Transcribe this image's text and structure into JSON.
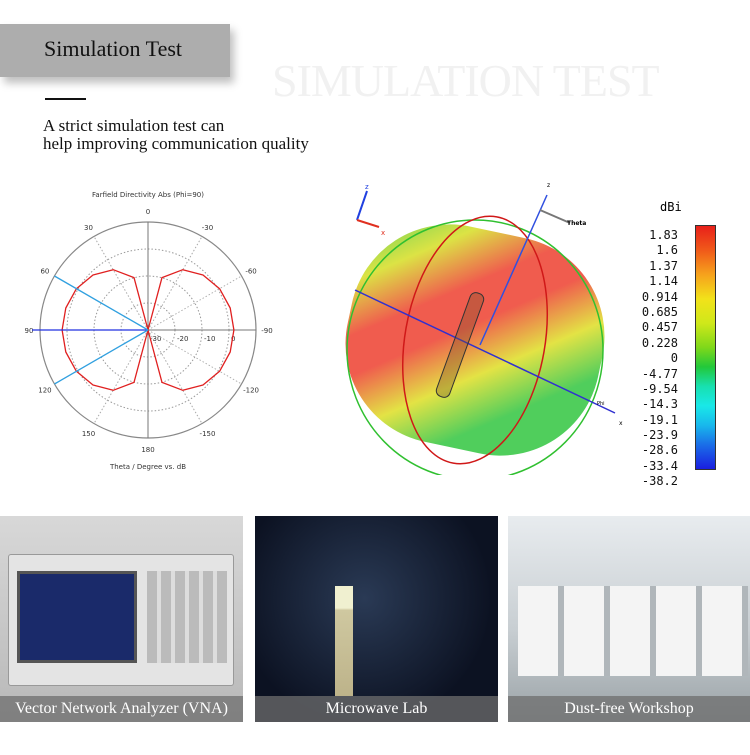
{
  "header": {
    "title": "Simulation Test",
    "watermark": "SIMULATION TEST",
    "description": [
      "A strict simulation test can",
      "help improving communication quality"
    ]
  },
  "chart_data": {
    "type": "polar",
    "title": "Farfield Directivity Abs (Phi=90)",
    "xlabel": "Theta / Degree vs. dB",
    "angle_ticks": [
      "0",
      "30",
      "60",
      "90",
      "120",
      "150",
      "180",
      "-150",
      "-120",
      "-90",
      "-60",
      "-30"
    ],
    "radial_ticks": [
      "-30",
      "-20",
      "-10",
      "0"
    ],
    "radial_range": [
      -30,
      10
    ],
    "series": [
      {
        "color": "#e02020",
        "theta": [
          0,
          15,
          30,
          45,
          60,
          75,
          90,
          105,
          120,
          135,
          150,
          165,
          180
        ],
        "db": [
          -30,
          -9.9,
          -4.2,
          -1.2,
          0.6,
          1.5,
          1.83,
          1.5,
          0.6,
          -1.2,
          -4.2,
          -9.9,
          -30
        ]
      }
    ],
    "markers": {
      "main_lobe_theta": 90,
      "beamwidth_lines_theta": [
        60,
        120
      ]
    }
  },
  "sim3d": {
    "axis_labels": {
      "z": "z",
      "x": "x",
      "theta": "Theta",
      "phi": "Phi",
      "small_z": "z",
      "small_x": "x"
    }
  },
  "colorbar": {
    "unit": "dBi",
    "ticks": [
      "1.83",
      "1.6",
      "1.37",
      "1.14",
      "0.914",
      "0.685",
      "0.457",
      "0.228",
      "0",
      "-4.77",
      "-9.54",
      "-14.3",
      "-19.1",
      "-23.9",
      "-28.6",
      "-33.4",
      "-38.2"
    ]
  },
  "photos": [
    {
      "caption": "Vector Network Analyzer (VNA)"
    },
    {
      "caption": "Microwave Lab"
    },
    {
      "caption": "Dust-free Workshop"
    }
  ]
}
